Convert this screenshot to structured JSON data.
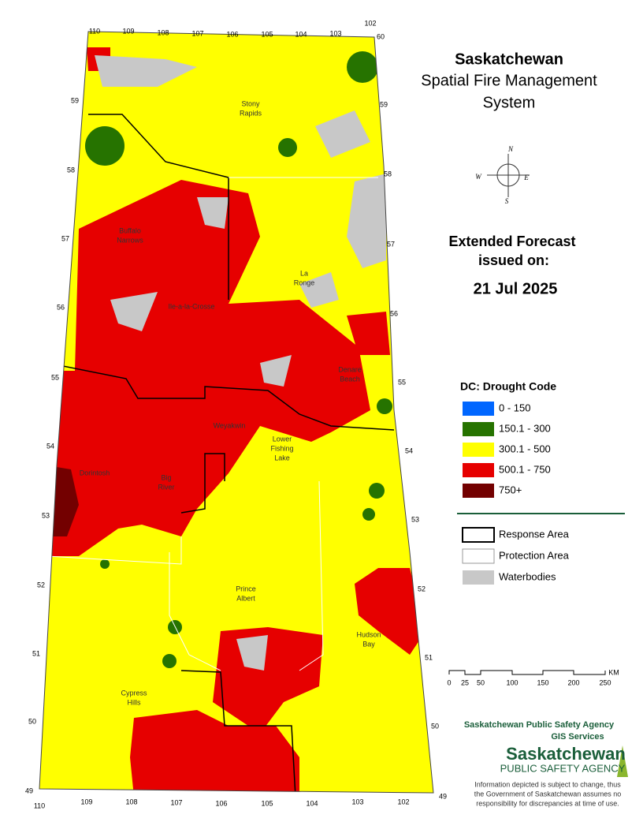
{
  "title": {
    "lines": [
      "Saskatchewan",
      "Spatial Fire Management",
      "System"
    ]
  },
  "compass": {
    "n": "N",
    "e": "E",
    "s": "S",
    "w": "W"
  },
  "forecast": {
    "heading": [
      "Extended Forecast",
      "issued on:"
    ],
    "date": "21 Jul 2025"
  },
  "legend": {
    "title": "DC: Drought Code",
    "items": [
      {
        "label": "0 - 150",
        "color": "#0066ff"
      },
      {
        "label": "150.1 - 300",
        "color": "#267300"
      },
      {
        "label": "300.1 - 500",
        "color": "#ffff00"
      },
      {
        "label": "500.1 - 750",
        "color": "#e60000"
      },
      {
        "label": "750+",
        "color": "#730000"
      }
    ]
  },
  "boundaries": [
    {
      "label": "Response Area"
    },
    {
      "label": "Protection Area"
    },
    {
      "label": "Waterbodies"
    }
  ],
  "scale": {
    "ticks": [
      "0",
      "25",
      "50",
      "100",
      "150",
      "200",
      "250"
    ],
    "unit": "KM"
  },
  "places": [
    {
      "lines": [
        "Stony",
        "Rapids"
      ]
    },
    {
      "lines": [
        "Buffalo",
        "Narrows"
      ]
    },
    {
      "lines": [
        "La",
        "Ronge"
      ]
    },
    {
      "lines": [
        "Ile-a-la-Crosse"
      ]
    },
    {
      "lines": [
        "Denare",
        "Beach"
      ]
    },
    {
      "lines": [
        "Weyakwin"
      ]
    },
    {
      "lines": [
        "Lower",
        "Fishing",
        "Lake"
      ]
    },
    {
      "lines": [
        "Dorintosh"
      ]
    },
    {
      "lines": [
        "Big",
        "River"
      ]
    },
    {
      "lines": [
        "Prince",
        "Albert"
      ]
    },
    {
      "lines": [
        "Hudson",
        "Bay"
      ]
    },
    {
      "lines": [
        "Cypress",
        "Hills"
      ]
    }
  ],
  "grid": {
    "lat_left": [
      "59",
      "58",
      "57",
      "56",
      "55",
      "54",
      "53",
      "52",
      "51",
      "50",
      "49"
    ],
    "lat_right": [
      "60",
      "59",
      "58",
      "57",
      "56",
      "55",
      "54",
      "53",
      "52",
      "51",
      "50",
      "49"
    ],
    "lon_top": [
      "110",
      "109",
      "108",
      "107",
      "106",
      "105",
      "104",
      "103",
      "102"
    ],
    "lon_bottom": [
      "110",
      "109",
      "108",
      "107",
      "106",
      "105",
      "104",
      "103",
      "102"
    ]
  },
  "agency": {
    "name": "Saskatchewan Public Safety Agency",
    "unit": "GIS  Services",
    "logo_top": "Saskatchewan",
    "logo_bottom": "PUBLIC SAFETY AGENCY",
    "disclaimer": [
      "Information depicted is subject to change, thus",
      "the Government of Saskatchewan assumes no",
      "responsibility for discrepancies at time of use."
    ]
  }
}
